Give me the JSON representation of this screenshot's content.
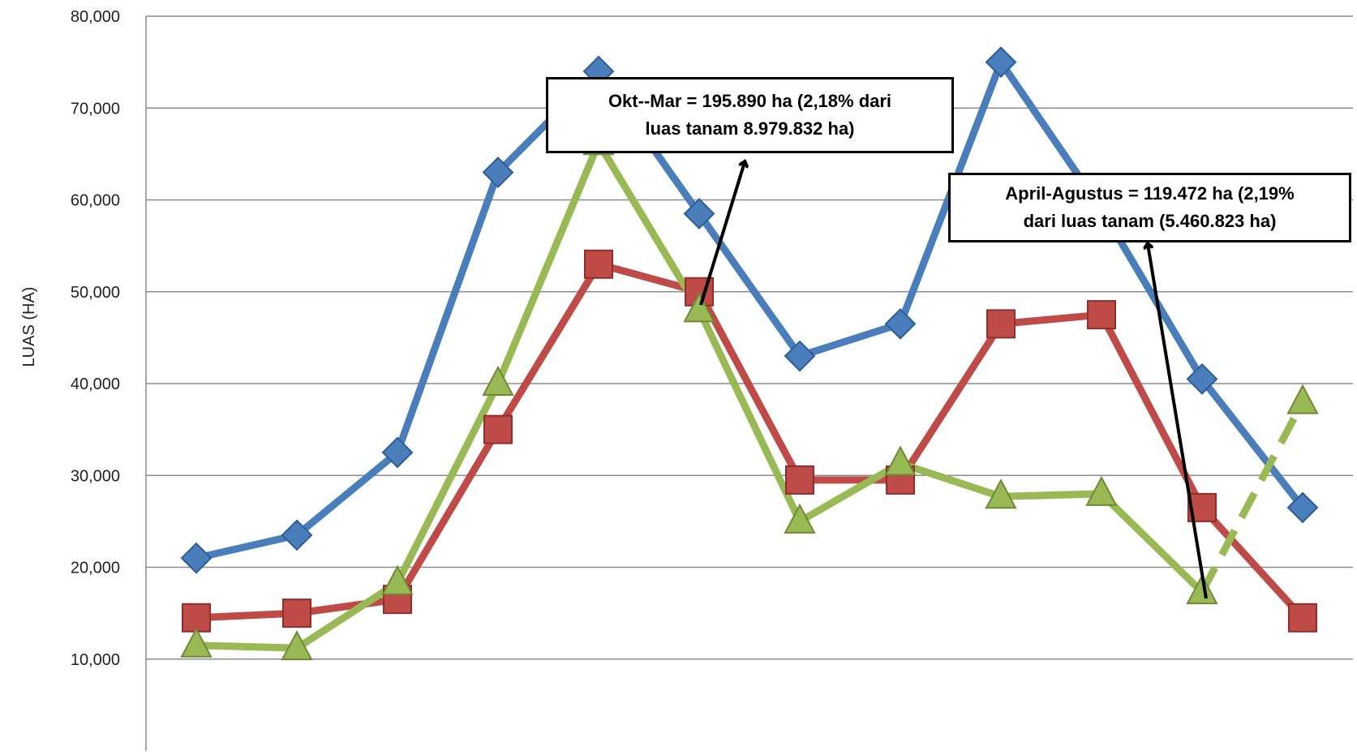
{
  "chart_data": {
    "type": "line",
    "ylabel": "LUAS  (HA)",
    "ylim": [
      0,
      80000
    ],
    "yticks": [
      "10,000",
      "20,000",
      "30,000",
      "40,000",
      "50,000",
      "60,000",
      "70,000",
      "80,000"
    ],
    "ytick_values": [
      10000,
      20000,
      30000,
      40000,
      50000,
      60000,
      70000,
      80000
    ],
    "n_points": 12,
    "grid": true,
    "series": [
      {
        "color": "#4a7ebb",
        "marker": "diamond",
        "values": [
          21000,
          23500,
          32500,
          63000,
          74000,
          58500,
          43000,
          46500,
          75000,
          59000,
          40500,
          26500
        ]
      },
      {
        "color": "#be4b48",
        "marker": "square",
        "values": [
          14500,
          15000,
          16500,
          35000,
          53000,
          50000,
          29500,
          29500,
          46500,
          47500,
          26500,
          14500
        ]
      },
      {
        "color": "#98b954",
        "marker": "triangle",
        "values": [
          11500,
          11200,
          18300,
          40000,
          66200,
          48000,
          25000,
          31300,
          27700,
          28000,
          17300,
          38000
        ],
        "dashed_from_index": 10
      }
    ],
    "annotations": [
      {
        "line1": "Okt--Mar =  195.890 ha (2,18%  dari",
        "line2": "luas tanam 8.979.832 ha)"
      },
      {
        "line1": "April-Agustus = 119.472 ha  (2,19%",
        "line2": "dari luas tanam (5.460.823  ha)"
      }
    ]
  }
}
